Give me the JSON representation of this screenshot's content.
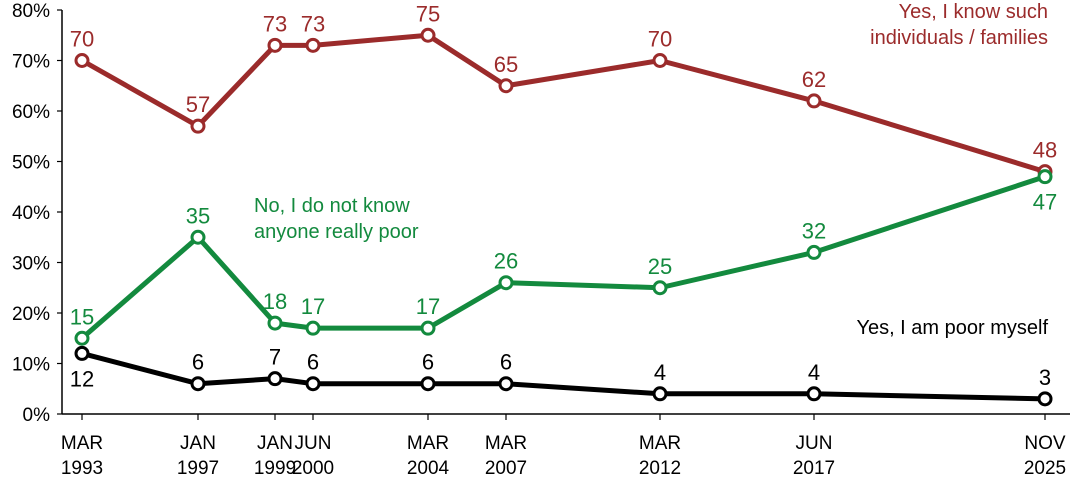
{
  "chart_data": {
    "type": "line",
    "x": [
      1993.17,
      1997.0,
      1999.0,
      2000.42,
      2004.17,
      2007.17,
      2012.17,
      2017.42,
      2025.83
    ],
    "x_tick_labels": [
      [
        "MAR",
        "1993"
      ],
      [
        "JAN",
        "1997"
      ],
      [
        "JAN",
        "1999"
      ],
      [
        "JUN",
        "2000"
      ],
      [
        "MAR",
        "2004"
      ],
      [
        "MAR",
        "2007"
      ],
      [
        "MAR",
        "2012"
      ],
      [
        "JUN",
        "2017"
      ],
      [
        "NOV",
        "2025"
      ]
    ],
    "ylim": [
      0,
      80
    ],
    "y_ticks": [
      0,
      10,
      20,
      30,
      40,
      50,
      60,
      70,
      80
    ],
    "y_tick_labels": [
      "0%",
      "10%",
      "20%",
      "30%",
      "40%",
      "50%",
      "60%",
      "70%",
      "80%"
    ],
    "grid": false,
    "series": [
      {
        "name": "Yes, I know such individuals / families",
        "name_lines": [
          "Yes, I know such",
          "individuals / families"
        ],
        "color": "#9b2b2b",
        "values": [
          70,
          57,
          73,
          73,
          75,
          65,
          70,
          62,
          48
        ],
        "label_side": [
          "above",
          "above",
          "above",
          "above",
          "above",
          "above",
          "above",
          "above",
          "above"
        ]
      },
      {
        "name": "No, I do not know anyone really poor",
        "name_lines": [
          "No, I do not know",
          "anyone really poor"
        ],
        "color": "#138a3e",
        "values": [
          15,
          35,
          18,
          17,
          17,
          26,
          25,
          32,
          47
        ],
        "label_side": [
          "above",
          "above",
          "above",
          "above",
          "above",
          "above",
          "above",
          "above",
          "below"
        ]
      },
      {
        "name": "Yes, I am poor myself",
        "name_lines": [
          "Yes, I am poor myself"
        ],
        "color": "#000000",
        "values": [
          12,
          6,
          7,
          6,
          6,
          6,
          4,
          4,
          3
        ],
        "label_side": [
          "below",
          "above",
          "above",
          "above",
          "above",
          "above",
          "above",
          "above",
          "above"
        ]
      }
    ]
  }
}
